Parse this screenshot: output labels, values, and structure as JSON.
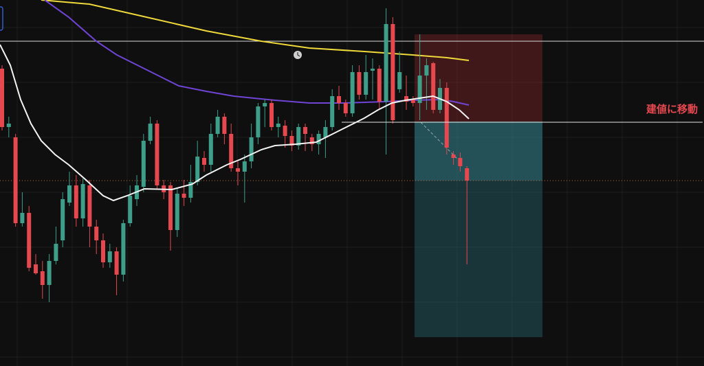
{
  "annotation": "建値に移動"
}
